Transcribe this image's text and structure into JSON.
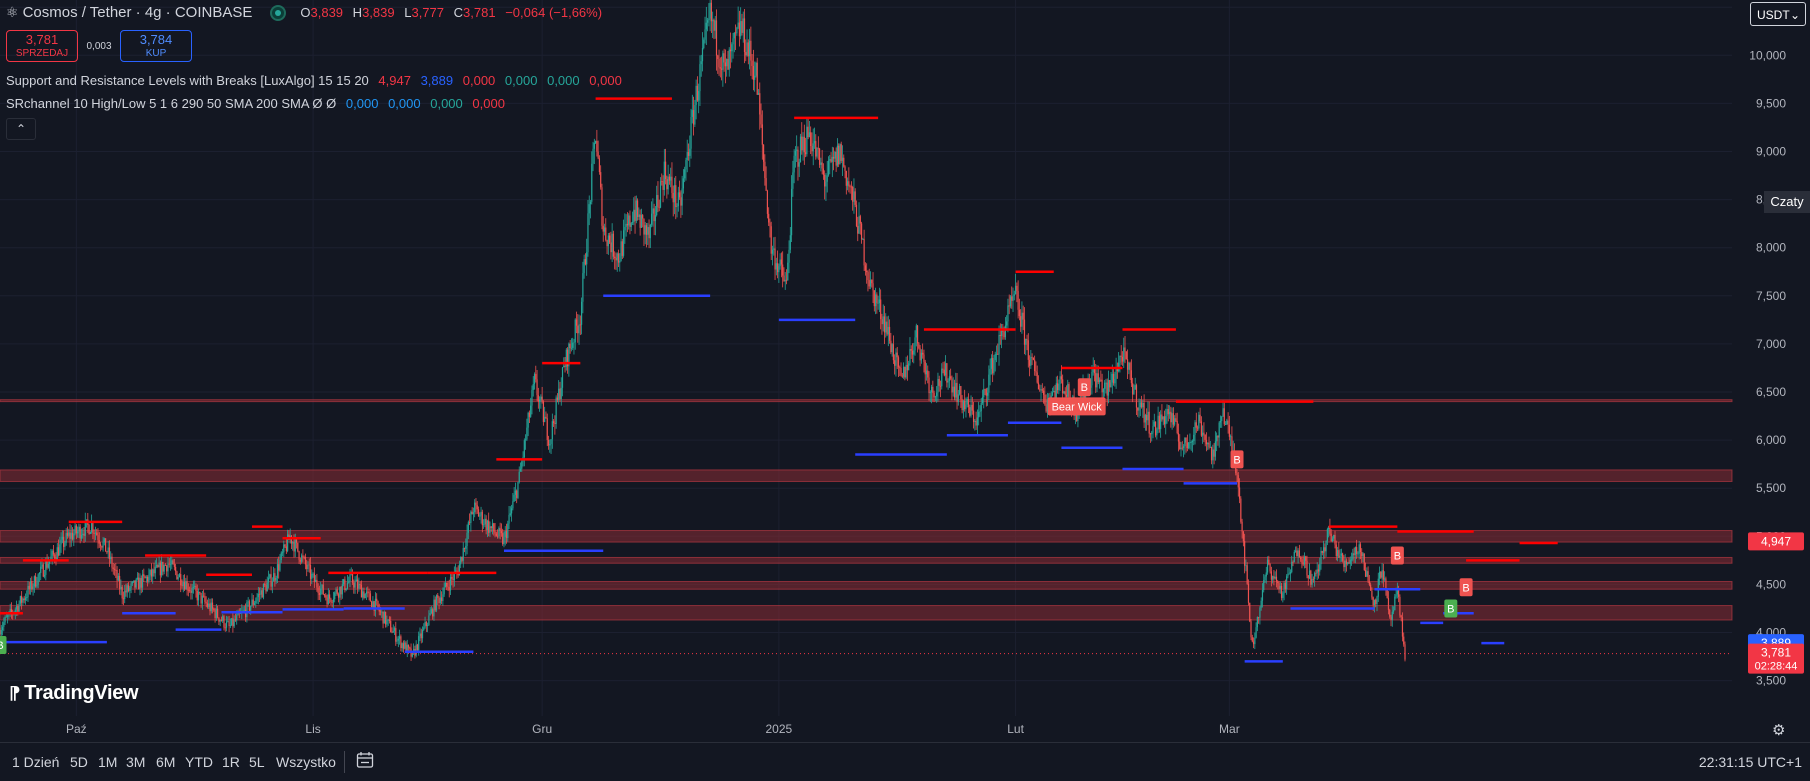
{
  "header": {
    "symbol_title": "Cosmos / Tether · 4g · COINBASE",
    "ohlc": [
      {
        "label": "O",
        "value": "3,839"
      },
      {
        "label": "H",
        "value": "3,839"
      },
      {
        "label": "L",
        "value": "3,777"
      },
      {
        "label": "C",
        "value": "3,781"
      }
    ],
    "change": "−0,064 (−1,66%)"
  },
  "trade": {
    "sell_price": "3,781",
    "sell_label": "SPRZEDAJ",
    "spread": "0,003",
    "buy_price": "3,784",
    "buy_label": "KUP"
  },
  "indicators": [
    {
      "name": "Support and Resistance Levels with Breaks [LuxAlgo] 15 15 20",
      "values": [
        {
          "v": "4,947",
          "color": "#f23645"
        },
        {
          "v": "3,889",
          "color": "#2962ff"
        },
        {
          "v": "0,000",
          "color": "#f23645"
        },
        {
          "v": "0,000",
          "color": "#26a69a"
        },
        {
          "v": "0,000",
          "color": "#26a69a"
        },
        {
          "v": "0,000",
          "color": "#f23645"
        }
      ]
    },
    {
      "name": "SRchannel 10 High/Low 5 1 6 290 50 SMA 200 SMA  Ø  Ø",
      "values": [
        {
          "v": "0,000",
          "color": "#2196f3"
        },
        {
          "v": "0,000",
          "color": "#2196f3"
        },
        {
          "v": "0,000",
          "color": "#26a69a"
        },
        {
          "v": "0,000",
          "color": "#f23645"
        }
      ]
    }
  ],
  "brand": "TradingView",
  "currency": "USDT",
  "side_tab": "Czaty",
  "colors": {
    "background": "#131722",
    "up": "#26a69a",
    "down": "#ef5350",
    "resistance": "#ff0000",
    "support": "#2a3fff",
    "zone": "#8b2c35"
  },
  "toolbar": {
    "timeframes": [
      "1 Dzień",
      "5D",
      "1M",
      "3M",
      "6M",
      "YTD",
      "1R",
      "5L",
      "Wszystko"
    ],
    "clock": "22:31:15 UTC+1"
  },
  "chart_data": {
    "type": "candlestick",
    "y_axis": {
      "min": 3.35,
      "max": 10.75,
      "ticks": [
        3.5,
        4.0,
        4.5,
        5.0,
        5.5,
        6.0,
        6.5,
        7.0,
        7.5,
        8.0,
        8.5,
        9.0,
        9.5,
        10.0,
        10.5
      ],
      "tick_labels": [
        "3,500",
        "4,000",
        "4,500",
        "5,000",
        "5,500",
        "6,000",
        "6,500",
        "7,000",
        "7,500",
        "8,000",
        "8,500",
        "9,000",
        "9,500",
        "10,000",
        "10,500"
      ]
    },
    "x_axis": {
      "start": "2024-09-21",
      "end": "2025-03-24",
      "labels": [
        {
          "date": "2024-10-01",
          "text": "Paź"
        },
        {
          "date": "2024-11-01",
          "text": "Lis"
        },
        {
          "date": "2024-12-01",
          "text": "Gru"
        },
        {
          "date": "2025-01-01",
          "text": "2025"
        },
        {
          "date": "2025-02-01",
          "text": "Lut"
        },
        {
          "date": "2025-03-01",
          "text": "Mar"
        }
      ]
    },
    "close_path": [
      [
        "2024-09-21",
        4.05
      ],
      [
        "2024-09-24",
        4.35
      ],
      [
        "2024-09-27",
        4.7
      ],
      [
        "2024-09-30",
        5.0
      ],
      [
        "2024-10-03",
        5.12
      ],
      [
        "2024-10-05",
        4.85
      ],
      [
        "2024-10-07",
        4.4
      ],
      [
        "2024-10-10",
        4.55
      ],
      [
        "2024-10-13",
        4.72
      ],
      [
        "2024-10-16",
        4.45
      ],
      [
        "2024-10-19",
        4.22
      ],
      [
        "2024-10-21",
        4.05
      ],
      [
        "2024-10-24",
        4.3
      ],
      [
        "2024-10-27",
        4.6
      ],
      [
        "2024-10-29",
        5.0
      ],
      [
        "2024-11-01",
        4.55
      ],
      [
        "2024-11-03",
        4.35
      ],
      [
        "2024-11-06",
        4.55
      ],
      [
        "2024-11-09",
        4.3
      ],
      [
        "2024-11-12",
        3.95
      ],
      [
        "2024-11-14",
        3.75
      ],
      [
        "2024-11-17",
        4.3
      ],
      [
        "2024-11-20",
        4.65
      ],
      [
        "2024-11-22",
        5.3
      ],
      [
        "2024-11-24",
        5.1
      ],
      [
        "2024-11-26",
        4.95
      ],
      [
        "2024-11-28",
        5.6
      ],
      [
        "2024-11-30",
        6.6
      ],
      [
        "2024-12-02",
        6.0
      ],
      [
        "2024-12-04",
        6.8
      ],
      [
        "2024-12-06",
        7.3
      ],
      [
        "2024-12-08",
        9.2
      ],
      [
        "2024-12-09",
        8.2
      ],
      [
        "2024-12-11",
        7.9
      ],
      [
        "2024-12-13",
        8.4
      ],
      [
        "2024-12-15",
        8.1
      ],
      [
        "2024-12-17",
        8.8
      ],
      [
        "2024-12-19",
        8.4
      ],
      [
        "2024-12-21",
        9.5
      ],
      [
        "2024-12-23",
        10.4
      ],
      [
        "2024-12-25",
        9.8
      ],
      [
        "2024-12-27",
        10.3
      ],
      [
        "2024-12-29",
        9.8
      ],
      [
        "2024-12-31",
        8.0
      ],
      [
        "2025-01-02",
        7.6
      ],
      [
        "2025-01-03",
        8.9
      ],
      [
        "2025-01-05",
        9.2
      ],
      [
        "2025-01-07",
        8.7
      ],
      [
        "2025-01-09",
        9.0
      ],
      [
        "2025-01-11",
        8.4
      ],
      [
        "2025-01-13",
        7.6
      ],
      [
        "2025-01-15",
        7.2
      ],
      [
        "2025-01-17",
        6.6
      ],
      [
        "2025-01-19",
        7.1
      ],
      [
        "2025-01-21",
        6.5
      ],
      [
        "2025-01-23",
        6.7
      ],
      [
        "2025-01-25",
        6.4
      ],
      [
        "2025-01-27",
        6.2
      ],
      [
        "2025-01-29",
        6.8
      ],
      [
        "2025-01-31",
        7.3
      ],
      [
        "2025-02-01",
        7.5
      ],
      [
        "2025-02-03",
        6.8
      ],
      [
        "2025-02-05",
        6.4
      ],
      [
        "2025-02-07",
        6.6
      ],
      [
        "2025-02-09",
        6.3
      ],
      [
        "2025-02-11",
        6.7
      ],
      [
        "2025-02-13",
        6.5
      ],
      [
        "2025-02-15",
        6.9
      ],
      [
        "2025-02-17",
        6.4
      ],
      [
        "2025-02-19",
        6.1
      ],
      [
        "2025-02-21",
        6.3
      ],
      [
        "2025-02-23",
        5.9
      ],
      [
        "2025-02-25",
        6.2
      ],
      [
        "2025-02-27",
        5.8
      ],
      [
        "2025-02-28",
        6.35
      ],
      [
        "2025-03-02",
        5.7
      ],
      [
        "2025-03-04",
        3.85
      ],
      [
        "2025-03-06",
        4.7
      ],
      [
        "2025-03-08",
        4.4
      ],
      [
        "2025-03-10",
        4.9
      ],
      [
        "2025-03-12",
        4.5
      ],
      [
        "2025-03-14",
        5.05
      ],
      [
        "2025-03-16",
        4.7
      ],
      [
        "2025-03-18",
        4.9
      ],
      [
        "2025-03-20",
        4.3
      ],
      [
        "2025-03-21",
        4.7
      ],
      [
        "2025-03-22",
        4.1
      ],
      [
        "2025-03-23",
        4.4
      ],
      [
        "2025-03-24",
        3.78
      ]
    ],
    "resistance_levels": [
      {
        "start": "2024-09-21",
        "end": "2024-09-24",
        "y": 4.2
      },
      {
        "start": "2024-09-24",
        "end": "2024-09-30",
        "y": 4.75
      },
      {
        "start": "2024-09-30",
        "end": "2024-10-07",
        "y": 5.15
      },
      {
        "start": "2024-10-10",
        "end": "2024-10-18",
        "y": 4.8
      },
      {
        "start": "2024-10-18",
        "end": "2024-10-24",
        "y": 4.6
      },
      {
        "start": "2024-10-24",
        "end": "2024-10-28",
        "y": 5.1
      },
      {
        "start": "2024-10-28",
        "end": "2024-11-02",
        "y": 4.98
      },
      {
        "start": "2024-11-03",
        "end": "2024-11-16",
        "y": 4.62
      },
      {
        "start": "2024-11-16",
        "end": "2024-11-25",
        "y": 4.62
      },
      {
        "start": "2024-11-25",
        "end": "2024-12-01",
        "y": 5.8
      },
      {
        "start": "2024-12-01",
        "end": "2024-12-06",
        "y": 6.8
      },
      {
        "start": "2024-12-08",
        "end": "2024-12-18",
        "y": 9.55
      },
      {
        "start": "2024-12-18",
        "end": "2024-12-31",
        "y": 10.7
      },
      {
        "start": "2025-01-03",
        "end": "2025-01-14",
        "y": 9.35
      },
      {
        "start": "2025-01-20",
        "end": "2025-02-01",
        "y": 7.15
      },
      {
        "start": "2025-02-01",
        "end": "2025-02-06",
        "y": 7.75
      },
      {
        "start": "2025-02-07",
        "end": "2025-02-15",
        "y": 6.75
      },
      {
        "start": "2025-02-15",
        "end": "2025-02-22",
        "y": 7.15
      },
      {
        "start": "2025-02-22",
        "end": "2025-03-12",
        "y": 6.4
      },
      {
        "start": "2025-03-14",
        "end": "2025-03-23",
        "y": 5.1
      },
      {
        "start": "2025-03-23",
        "end": "2025-04-02",
        "y": 5.05
      },
      {
        "start": "2025-04-01",
        "end": "2025-04-08",
        "y": 4.75
      },
      {
        "start": "2025-04-08",
        "end": "2025-04-13",
        "y": 4.93
      }
    ],
    "support_levels": [
      {
        "start": "2024-09-21",
        "end": "2024-10-05",
        "y": 3.9
      },
      {
        "start": "2024-10-07",
        "end": "2024-10-14",
        "y": 4.2
      },
      {
        "start": "2024-10-14",
        "end": "2024-10-20",
        "y": 4.03
      },
      {
        "start": "2024-10-20",
        "end": "2024-10-28",
        "y": 4.21
      },
      {
        "start": "2024-10-28",
        "end": "2024-11-05",
        "y": 4.24
      },
      {
        "start": "2024-11-05",
        "end": "2024-11-13",
        "y": 4.25
      },
      {
        "start": "2024-11-13",
        "end": "2024-11-22",
        "y": 3.8
      },
      {
        "start": "2024-11-26",
        "end": "2024-12-09",
        "y": 4.85
      },
      {
        "start": "2024-12-09",
        "end": "2024-12-23",
        "y": 7.5
      },
      {
        "start": "2025-01-01",
        "end": "2025-01-11",
        "y": 7.25
      },
      {
        "start": "2025-01-11",
        "end": "2025-01-23",
        "y": 5.85
      },
      {
        "start": "2025-01-23",
        "end": "2025-01-31",
        "y": 6.05
      },
      {
        "start": "2025-01-31",
        "end": "2025-02-07",
        "y": 6.18
      },
      {
        "start": "2025-02-07",
        "end": "2025-02-15",
        "y": 5.92
      },
      {
        "start": "2025-02-15",
        "end": "2025-02-23",
        "y": 5.7
      },
      {
        "start": "2025-02-23",
        "end": "2025-03-02",
        "y": 5.55
      },
      {
        "start": "2025-03-03",
        "end": "2025-03-08",
        "y": 3.7
      },
      {
        "start": "2025-03-09",
        "end": "2025-03-20",
        "y": 4.25
      },
      {
        "start": "2025-03-20",
        "end": "2025-03-26",
        "y": 4.45
      },
      {
        "start": "2025-03-26",
        "end": "2025-03-29",
        "y": 4.1
      },
      {
        "start": "2025-03-29",
        "end": "2025-04-02",
        "y": 4.2
      },
      {
        "start": "2025-04-03",
        "end": "2025-04-06",
        "y": 3.89
      }
    ],
    "zones": [
      {
        "y_low": 5.57,
        "y_high": 5.69
      },
      {
        "y_low": 4.94,
        "y_high": 5.06
      },
      {
        "y_low": 4.72,
        "y_high": 4.78
      },
      {
        "y_low": 4.45,
        "y_high": 4.53
      },
      {
        "y_low": 4.13,
        "y_high": 4.28
      },
      {
        "y_low": 6.4,
        "y_high": 6.42
      }
    ],
    "markers": [
      {
        "date": "2024-09-21",
        "y": 3.87,
        "text": "B",
        "color": "#4caf50"
      },
      {
        "date": "2025-02-10",
        "y": 6.55,
        "text": "B",
        "color": "#ef5350"
      },
      {
        "date": "2025-02-09",
        "y": 6.35,
        "text": "Bear Wick",
        "color": "#ef5350"
      },
      {
        "date": "2025-03-02",
        "y": 5.8,
        "text": "B",
        "color": "#ef5350"
      },
      {
        "date": "2025-03-23",
        "y": 4.8,
        "text": "B",
        "color": "#ef5350"
      },
      {
        "date": "2025-03-30",
        "y": 4.25,
        "text": "B",
        "color": "#4caf50"
      },
      {
        "date": "2025-04-01",
        "y": 4.47,
        "text": "B",
        "color": "#ef5350"
      }
    ],
    "price_labels": [
      {
        "y": 4.947,
        "text": "4,947",
        "color": "#f23645"
      },
      {
        "y": 3.889,
        "text": "3,889",
        "color": "#2962ff"
      },
      {
        "y": 3.781,
        "text": "3,781",
        "sub": "02:28:44",
        "color": "#f23645"
      }
    ]
  }
}
